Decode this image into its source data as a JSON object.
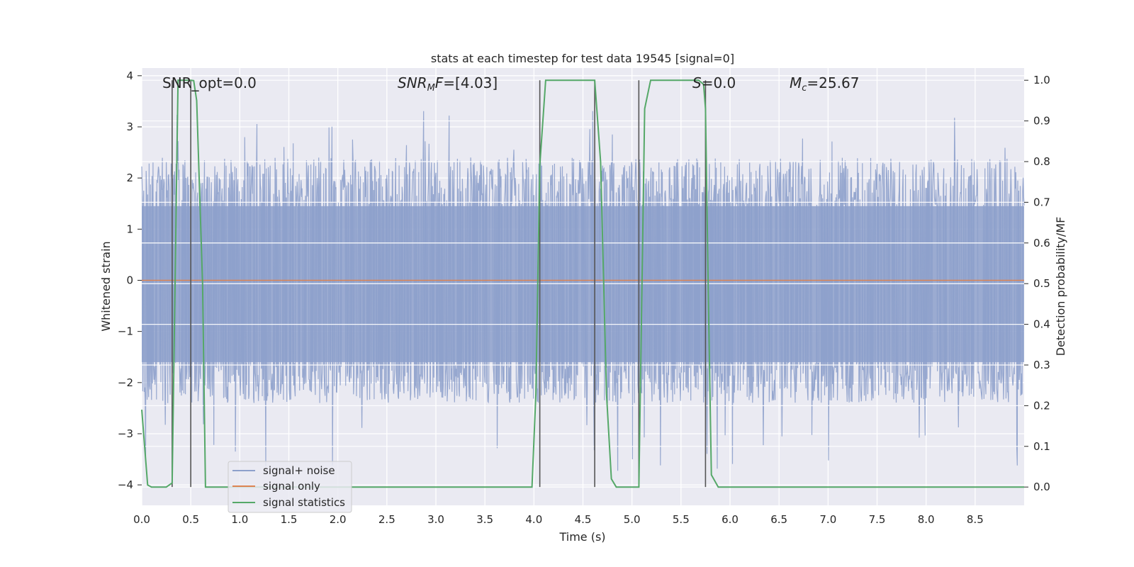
{
  "chart_data": {
    "type": "line",
    "title": "stats at each timestep for test data 19545 [signal=0]",
    "xlabel": "Time (s)",
    "ylabel_left": "Whitened strain",
    "ylabel_right": "Detection probability/MF",
    "xlim": [
      0.0,
      9.0
    ],
    "ylim_left": [
      -4.4,
      4.15
    ],
    "ylim_right": [
      -0.045,
      1.03
    ],
    "x_ticks": [
      "0.0",
      "0.5",
      "1.0",
      "1.5",
      "2.0",
      "2.5",
      "3.0",
      "3.5",
      "4.0",
      "4.5",
      "5.0",
      "5.5",
      "6.0",
      "6.5",
      "7.0",
      "7.5",
      "8.0",
      "8.5"
    ],
    "x_tick_values": [
      0.0,
      0.5,
      1.0,
      1.5,
      2.0,
      2.5,
      3.0,
      3.5,
      4.0,
      4.5,
      5.0,
      5.5,
      6.0,
      6.5,
      7.0,
      7.5,
      8.0,
      8.5
    ],
    "y_left_ticks": [
      "4",
      "3",
      "2",
      "1",
      "0",
      "−1",
      "−2",
      "−3",
      "−4"
    ],
    "y_left_tick_values": [
      4,
      3,
      2,
      1,
      0,
      -1,
      -2,
      -3,
      -4
    ],
    "y_right_ticks": [
      "1.0",
      "0.9",
      "0.8",
      "0.7",
      "0.6",
      "0.5",
      "0.4",
      "0.3",
      "0.2",
      "0.1",
      "0.0"
    ],
    "y_right_tick_values": [
      1.0,
      0.9,
      0.8,
      0.7,
      0.6,
      0.5,
      0.4,
      0.3,
      0.2,
      0.1,
      0.0
    ],
    "grid": true,
    "legend_position": "lower-left",
    "annotations": [
      {
        "text": "SNR_opt=0.0",
        "x": 0.2,
        "y": 3.8
      },
      {
        "text": "SNR_MF=[4.03]",
        "x": 2.6,
        "y": 3.8
      },
      {
        "text": "S=0.0",
        "x": 5.6,
        "y": 3.8
      },
      {
        "text": "M_c=25.67",
        "x": 6.6,
        "y": 3.8
      }
    ],
    "vertical_markers_x": [
      0.31,
      0.5,
      4.06,
      4.62,
      5.07,
      5.75
    ],
    "series": [
      {
        "name": "signal+ noise",
        "axis": "left",
        "style": "dense-noise",
        "color": "#8da0cb",
        "x_range": [
          0.0,
          9.0
        ],
        "core_band": [
          -1.6,
          1.45
        ],
        "typical_peaks": [
          -2.4,
          2.4
        ],
        "max_value": 3.35,
        "min_value": -3.75
      },
      {
        "name": "signal only",
        "axis": "left",
        "color": "#dd8452",
        "x": [
          0.0,
          9.0
        ],
        "values": [
          0.0,
          0.0
        ]
      },
      {
        "name": "signal statistics",
        "axis": "right",
        "color": "#55a868",
        "x": [
          0.0,
          0.06,
          0.1,
          0.25,
          0.31,
          0.34,
          0.37,
          0.5,
          0.53,
          0.56,
          0.62,
          0.65,
          1.0,
          2.0,
          3.0,
          3.98,
          4.02,
          4.06,
          4.12,
          4.3,
          4.45,
          4.62,
          4.68,
          4.74,
          4.79,
          4.84,
          4.9,
          5.0,
          5.07,
          5.13,
          5.19,
          5.3,
          5.5,
          5.68,
          5.73,
          5.75,
          5.78,
          5.81,
          5.88,
          6.5,
          7.5,
          8.5,
          9.0
        ],
        "values": [
          0.19,
          0.005,
          0.0,
          0.0,
          0.01,
          0.5,
          1.0,
          1.0,
          0.999,
          0.95,
          0.5,
          0.0,
          0.0,
          0.0,
          0.0,
          0.0,
          0.23,
          0.79,
          1.0,
          1.0,
          1.0,
          1.0,
          0.8,
          0.23,
          0.02,
          0.0,
          0.0,
          0.0,
          0.0,
          0.93,
          1.0,
          1.0,
          1.0,
          1.0,
          0.99,
          0.93,
          0.45,
          0.03,
          0.0,
          0.0,
          0.0,
          0.0,
          0.0
        ]
      }
    ]
  }
}
